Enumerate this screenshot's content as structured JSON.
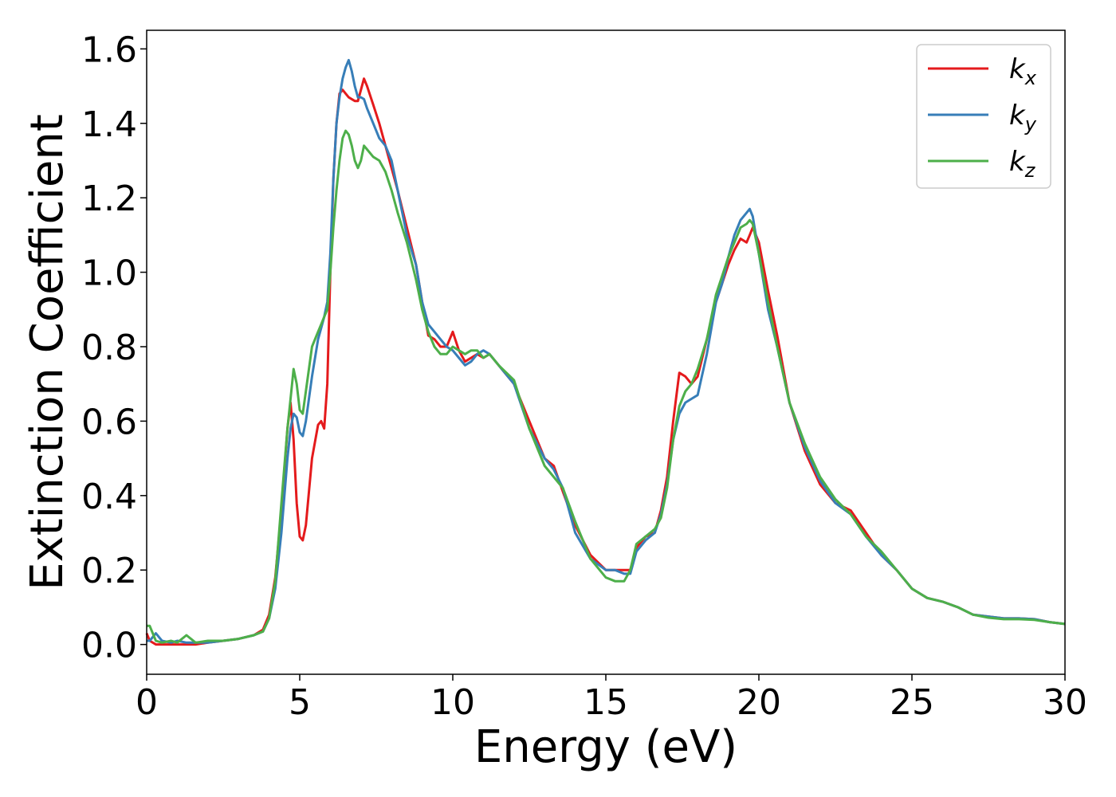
{
  "chart_data": {
    "type": "line",
    "title": "",
    "xlabel": "Energy (eV)",
    "ylabel": "Extinction Coefficient",
    "xlim": [
      0,
      30
    ],
    "ylim": [
      -0.08,
      1.65
    ],
    "xticks": [
      0,
      5,
      10,
      15,
      20,
      25,
      30
    ],
    "xtick_labels": [
      "0",
      "5",
      "10",
      "15",
      "20",
      "25",
      "30"
    ],
    "yticks": [
      0.0,
      0.2,
      0.4,
      0.6,
      0.8,
      1.0,
      1.2,
      1.4,
      1.6
    ],
    "ytick_labels": [
      "0.0",
      "0.2",
      "0.4",
      "0.6",
      "0.8",
      "1.0",
      "1.2",
      "1.4",
      "1.6"
    ],
    "grid": false,
    "legend_position": "top-right",
    "series": [
      {
        "name": "k_x",
        "label_main": "k",
        "label_sub": "x",
        "color": "#e41a1c",
        "x": [
          0,
          0.1,
          0.3,
          0.5,
          0.8,
          1.0,
          1.3,
          1.6,
          2.0,
          2.5,
          3.0,
          3.5,
          3.8,
          4.0,
          4.2,
          4.4,
          4.6,
          4.7,
          4.8,
          4.9,
          5.0,
          5.1,
          5.2,
          5.4,
          5.6,
          5.7,
          5.8,
          5.9,
          6.0,
          6.1,
          6.2,
          6.3,
          6.4,
          6.5,
          6.6,
          6.7,
          6.8,
          6.9,
          7.0,
          7.1,
          7.2,
          7.4,
          7.6,
          7.8,
          8.0,
          8.2,
          8.5,
          8.8,
          9.0,
          9.2,
          9.4,
          9.6,
          9.8,
          10.0,
          10.2,
          10.4,
          10.6,
          10.8,
          11.0,
          11.2,
          11.5,
          12.0,
          12.5,
          13.0,
          13.3,
          13.6,
          14.0,
          14.5,
          15.0,
          15.3,
          15.6,
          15.8,
          16.0,
          16.3,
          16.6,
          16.8,
          17.0,
          17.2,
          17.4,
          17.6,
          17.8,
          18.0,
          18.3,
          18.6,
          18.8,
          19.0,
          19.2,
          19.4,
          19.6,
          19.7,
          19.8,
          20.0,
          20.3,
          20.6,
          21.0,
          21.5,
          22.0,
          22.5,
          23.0,
          23.5,
          24.0,
          24.5,
          25.0,
          25.5,
          26.0,
          26.5,
          27.0,
          27.5,
          28.0,
          28.5,
          29.0,
          29.5,
          30.0
        ],
        "y": [
          0.03,
          0.01,
          0.0,
          0.0,
          0.0,
          0.0,
          0.0,
          0.0,
          0.005,
          0.01,
          0.015,
          0.025,
          0.04,
          0.08,
          0.18,
          0.36,
          0.58,
          0.65,
          0.55,
          0.38,
          0.29,
          0.28,
          0.32,
          0.5,
          0.59,
          0.6,
          0.58,
          0.7,
          1.0,
          1.25,
          1.4,
          1.48,
          1.49,
          1.48,
          1.47,
          1.465,
          1.46,
          1.46,
          1.49,
          1.52,
          1.5,
          1.45,
          1.4,
          1.34,
          1.28,
          1.22,
          1.12,
          1.02,
          0.92,
          0.83,
          0.82,
          0.8,
          0.8,
          0.84,
          0.79,
          0.76,
          0.77,
          0.78,
          0.77,
          0.78,
          0.75,
          0.7,
          0.6,
          0.5,
          0.48,
          0.41,
          0.32,
          0.24,
          0.2,
          0.2,
          0.2,
          0.2,
          0.26,
          0.29,
          0.3,
          0.36,
          0.45,
          0.6,
          0.73,
          0.72,
          0.7,
          0.72,
          0.82,
          0.92,
          0.97,
          1.02,
          1.06,
          1.09,
          1.08,
          1.1,
          1.12,
          1.08,
          0.95,
          0.83,
          0.65,
          0.52,
          0.43,
          0.38,
          0.36,
          0.3,
          0.24,
          0.2,
          0.15,
          0.125,
          0.115,
          0.1,
          0.08,
          0.075,
          0.07,
          0.07,
          0.068,
          0.06,
          0.055
        ]
      },
      {
        "name": "k_y",
        "label_main": "k",
        "label_sub": "y",
        "color": "#377eb8",
        "x": [
          0,
          0.1,
          0.3,
          0.5,
          0.8,
          1.0,
          1.3,
          1.6,
          2.0,
          2.5,
          3.0,
          3.5,
          3.8,
          4.0,
          4.2,
          4.4,
          4.6,
          4.7,
          4.8,
          4.9,
          5.0,
          5.1,
          5.2,
          5.4,
          5.6,
          5.7,
          5.8,
          5.9,
          6.0,
          6.1,
          6.2,
          6.3,
          6.4,
          6.5,
          6.6,
          6.7,
          6.8,
          6.9,
          7.0,
          7.1,
          7.2,
          7.4,
          7.6,
          7.8,
          8.0,
          8.2,
          8.5,
          8.8,
          9.0,
          9.2,
          9.4,
          9.6,
          9.8,
          10.0,
          10.2,
          10.4,
          10.6,
          10.8,
          11.0,
          11.2,
          11.5,
          12.0,
          12.5,
          13.0,
          13.3,
          13.6,
          14.0,
          14.5,
          15.0,
          15.3,
          15.6,
          15.8,
          16.0,
          16.3,
          16.6,
          16.8,
          17.0,
          17.2,
          17.4,
          17.6,
          17.8,
          18.0,
          18.3,
          18.6,
          18.8,
          19.0,
          19.2,
          19.4,
          19.6,
          19.7,
          19.8,
          20.0,
          20.3,
          20.6,
          21.0,
          21.5,
          22.0,
          22.5,
          23.0,
          23.5,
          24.0,
          24.5,
          25.0,
          25.5,
          26.0,
          26.5,
          27.0,
          27.5,
          28.0,
          28.5,
          29.0,
          29.5,
          30.0
        ],
        "y": [
          0.01,
          0.01,
          0.03,
          0.01,
          0.005,
          0.01,
          0.005,
          0.005,
          0.005,
          0.01,
          0.015,
          0.025,
          0.035,
          0.07,
          0.15,
          0.3,
          0.5,
          0.58,
          0.62,
          0.61,
          0.57,
          0.56,
          0.6,
          0.72,
          0.82,
          0.85,
          0.88,
          0.92,
          1.05,
          1.25,
          1.4,
          1.47,
          1.52,
          1.55,
          1.57,
          1.54,
          1.5,
          1.47,
          1.47,
          1.465,
          1.44,
          1.4,
          1.36,
          1.34,
          1.3,
          1.22,
          1.1,
          1.02,
          0.92,
          0.86,
          0.84,
          0.82,
          0.8,
          0.79,
          0.77,
          0.75,
          0.76,
          0.78,
          0.79,
          0.78,
          0.75,
          0.7,
          0.58,
          0.5,
          0.47,
          0.42,
          0.3,
          0.23,
          0.2,
          0.2,
          0.19,
          0.19,
          0.25,
          0.28,
          0.3,
          0.35,
          0.43,
          0.55,
          0.62,
          0.65,
          0.66,
          0.67,
          0.78,
          0.92,
          0.97,
          1.04,
          1.1,
          1.14,
          1.16,
          1.17,
          1.15,
          1.05,
          0.9,
          0.8,
          0.65,
          0.53,
          0.44,
          0.38,
          0.35,
          0.29,
          0.24,
          0.2,
          0.15,
          0.125,
          0.115,
          0.1,
          0.08,
          0.075,
          0.07,
          0.07,
          0.068,
          0.06,
          0.055
        ]
      },
      {
        "name": "k_z",
        "label_main": "k",
        "label_sub": "z",
        "color": "#4daf4a",
        "x": [
          0,
          0.1,
          0.3,
          0.5,
          0.8,
          1.0,
          1.3,
          1.6,
          2.0,
          2.5,
          3.0,
          3.5,
          3.8,
          4.0,
          4.2,
          4.4,
          4.6,
          4.7,
          4.8,
          4.9,
          5.0,
          5.1,
          5.2,
          5.4,
          5.6,
          5.7,
          5.8,
          5.9,
          6.0,
          6.1,
          6.2,
          6.3,
          6.4,
          6.5,
          6.6,
          6.7,
          6.8,
          6.9,
          7.0,
          7.1,
          7.2,
          7.4,
          7.6,
          7.8,
          8.0,
          8.2,
          8.5,
          8.8,
          9.0,
          9.2,
          9.4,
          9.6,
          9.8,
          10.0,
          10.2,
          10.4,
          10.6,
          10.8,
          11.0,
          11.2,
          11.5,
          12.0,
          12.5,
          13.0,
          13.3,
          13.6,
          14.0,
          14.5,
          15.0,
          15.3,
          15.6,
          15.8,
          16.0,
          16.3,
          16.6,
          16.8,
          17.0,
          17.2,
          17.4,
          17.6,
          17.8,
          18.0,
          18.3,
          18.6,
          18.8,
          19.0,
          19.2,
          19.4,
          19.6,
          19.7,
          19.8,
          20.0,
          20.3,
          20.6,
          21.0,
          21.5,
          22.0,
          22.5,
          23.0,
          23.5,
          24.0,
          24.5,
          25.0,
          25.5,
          26.0,
          26.5,
          27.0,
          27.5,
          28.0,
          28.5,
          29.0,
          29.5,
          30.0
        ],
        "y": [
          0.05,
          0.05,
          0.01,
          0.005,
          0.01,
          0.005,
          0.025,
          0.005,
          0.01,
          0.01,
          0.015,
          0.025,
          0.035,
          0.07,
          0.17,
          0.38,
          0.58,
          0.66,
          0.74,
          0.7,
          0.63,
          0.62,
          0.68,
          0.8,
          0.84,
          0.86,
          0.88,
          0.9,
          1.0,
          1.12,
          1.22,
          1.3,
          1.36,
          1.38,
          1.37,
          1.34,
          1.3,
          1.28,
          1.3,
          1.34,
          1.33,
          1.31,
          1.3,
          1.27,
          1.22,
          1.16,
          1.08,
          0.98,
          0.9,
          0.84,
          0.8,
          0.78,
          0.78,
          0.8,
          0.79,
          0.78,
          0.79,
          0.79,
          0.77,
          0.78,
          0.75,
          0.71,
          0.58,
          0.48,
          0.45,
          0.42,
          0.33,
          0.23,
          0.18,
          0.17,
          0.17,
          0.2,
          0.27,
          0.29,
          0.31,
          0.34,
          0.42,
          0.55,
          0.64,
          0.68,
          0.7,
          0.74,
          0.82,
          0.94,
          0.99,
          1.04,
          1.08,
          1.12,
          1.13,
          1.14,
          1.13,
          1.05,
          0.92,
          0.8,
          0.65,
          0.54,
          0.45,
          0.39,
          0.35,
          0.29,
          0.25,
          0.2,
          0.15,
          0.125,
          0.115,
          0.1,
          0.08,
          0.072,
          0.068,
          0.068,
          0.066,
          0.06,
          0.055
        ]
      }
    ]
  }
}
